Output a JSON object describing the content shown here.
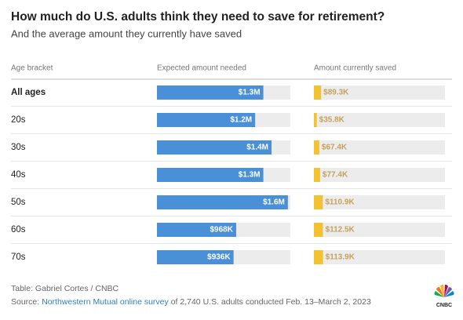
{
  "chart_data": {
    "type": "table-bar",
    "title": "How much do U.S. adults think they need to save for retirement?",
    "subtitle": "And the average amount they currently have saved",
    "category_label": "Age bracket",
    "categories": [
      "All ages",
      "20s",
      "30s",
      "40s",
      "50s",
      "60s",
      "70s"
    ],
    "series": [
      {
        "name": "Expected amount needed",
        "color": "#4a90d9",
        "values": [
          1300000,
          1200000,
          1400000,
          1300000,
          1600000,
          968000,
          936000
        ],
        "value_labels": [
          "$1.3M",
          "$1.2M",
          "$1.4M",
          "$1.3M",
          "$1.6M",
          "$968K",
          "$936K"
        ]
      },
      {
        "name": "Amount currently saved",
        "color": "#f2c230",
        "values": [
          89300,
          35800,
          67400,
          77400,
          110900,
          112500,
          113900
        ],
        "value_labels": [
          "$89.3K",
          "$35.8K",
          "$67.4K",
          "$77.4K",
          "$110.9K",
          "$112.5K",
          "$113.9K"
        ]
      }
    ],
    "xlim": [
      0,
      1630000
    ],
    "credit": "Table: Gabriel Cortes / CNBC",
    "source_prefix": "Source: ",
    "source_link": "Northwestern Mutual online survey",
    "source_rest": " of 2,740 U.S. adults conducted Feb. 13–March 2, 2023",
    "logo": "CNBC"
  }
}
